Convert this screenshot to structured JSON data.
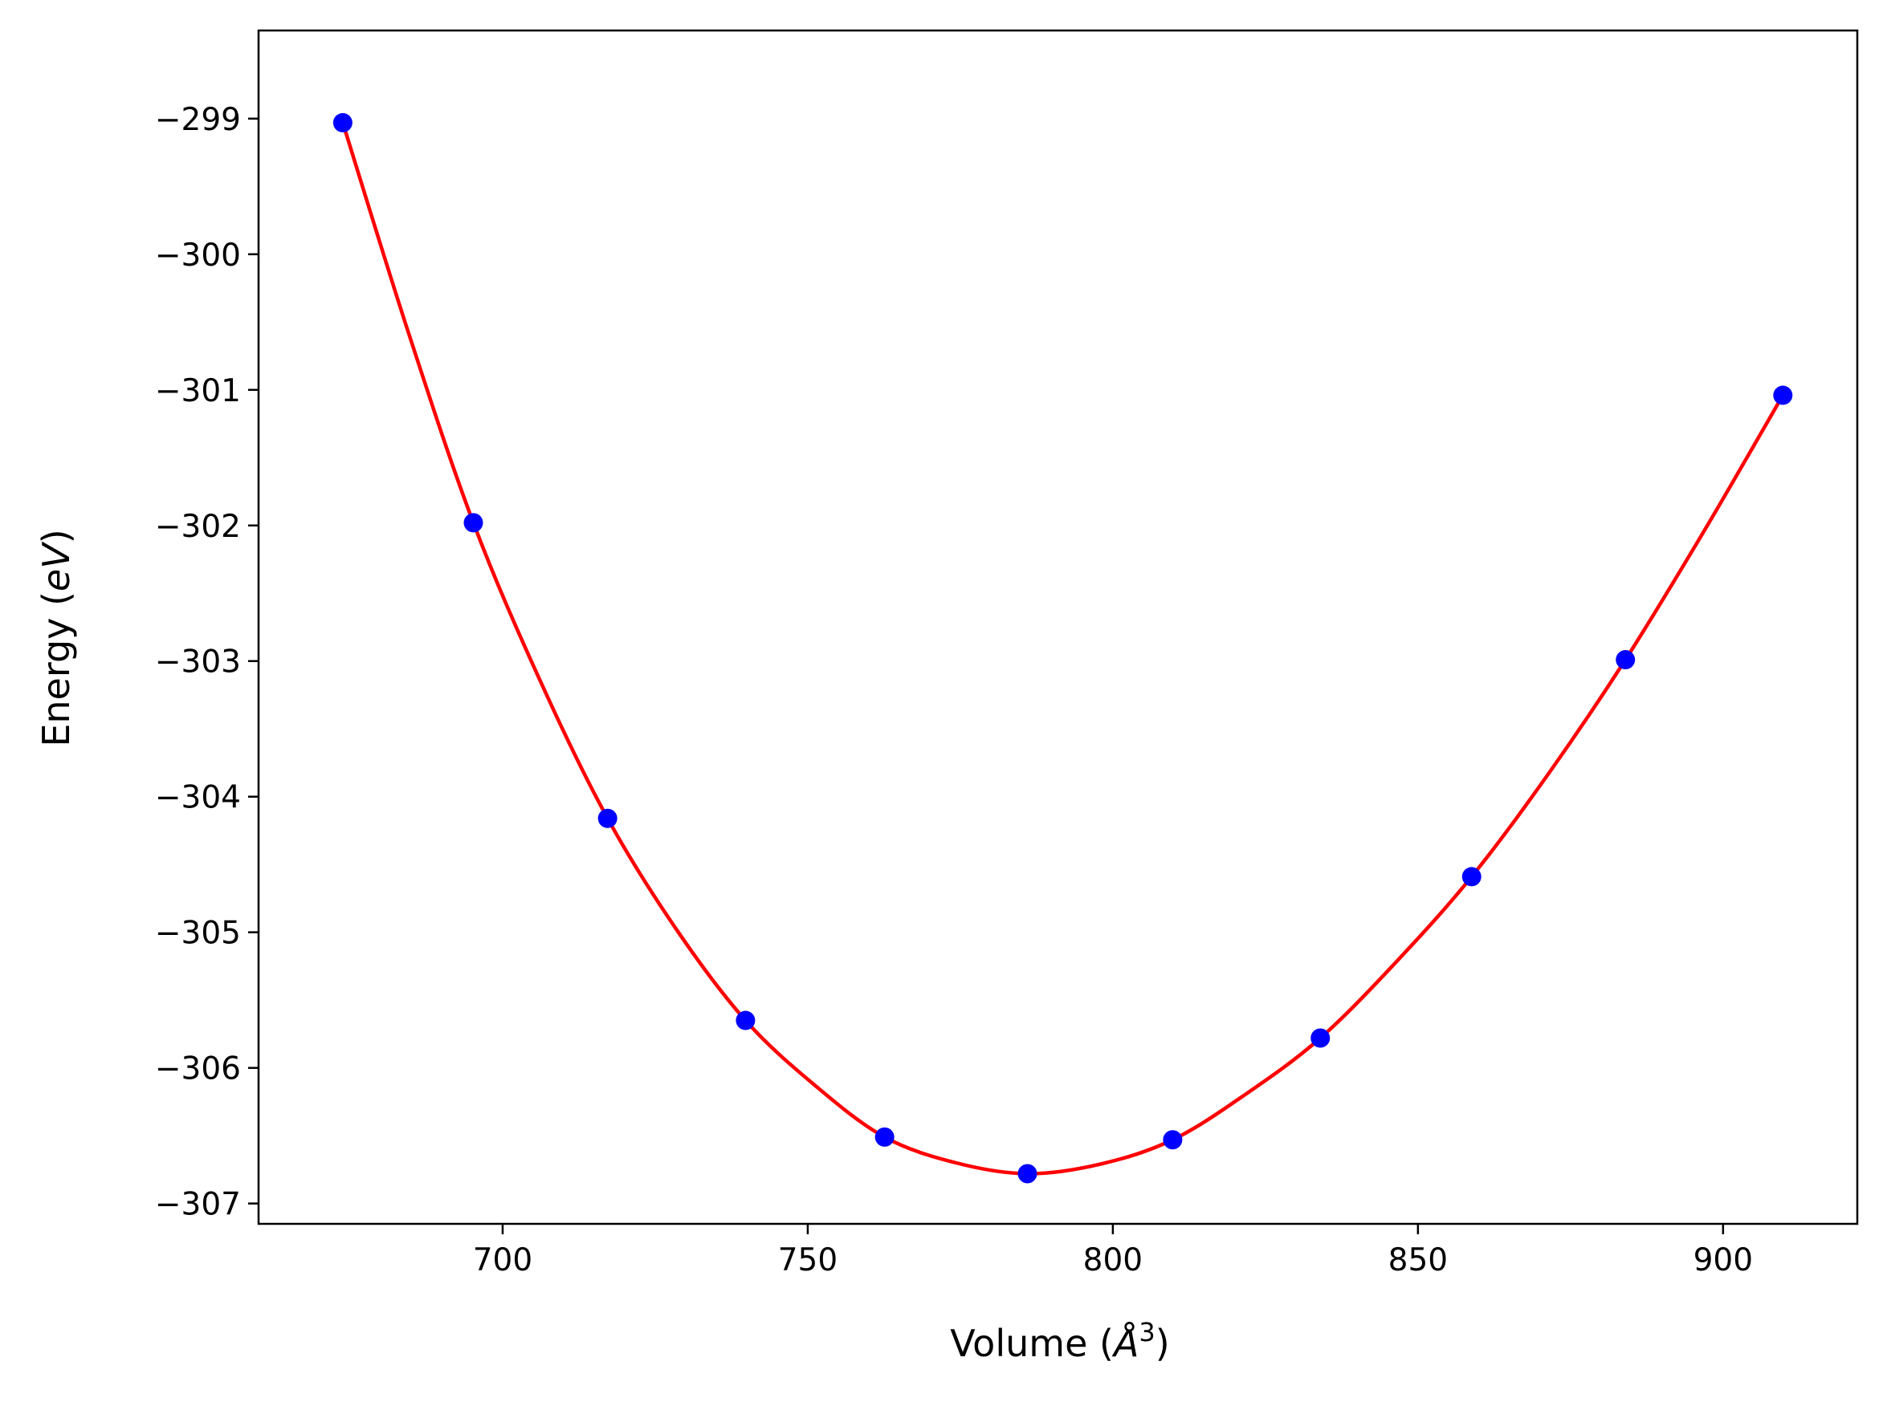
{
  "chart_data": {
    "type": "line",
    "title": "",
    "xlabel": {
      "prefix": "Volume (",
      "symbol": "Å",
      "sup": "3",
      "suffix": ")"
    },
    "ylabel": {
      "prefix": "Energy (",
      "symbol": "eV",
      "suffix": ")"
    },
    "xlim": [
      660,
      922
    ],
    "ylim": [
      -307.15,
      -298.35
    ],
    "xticks": [
      700,
      750,
      800,
      850,
      900
    ],
    "xtick_labels": [
      "700",
      "750",
      "800",
      "850",
      "900"
    ],
    "yticks": [
      -299,
      -300,
      -301,
      -302,
      -303,
      -304,
      -305,
      -306,
      -307
    ],
    "ytick_labels": [
      "−299",
      "−300",
      "−301",
      "−302",
      "−303",
      "−304",
      "−305",
      "−306",
      "−307"
    ],
    "grid": false,
    "legend": "none",
    "series": [
      {
        "type": "scatter",
        "color": "#0000ff",
        "x": [
          673.8,
          695.2,
          717.2,
          739.8,
          762.6,
          786.0,
          809.8,
          834.0,
          858.8,
          884.0,
          909.8
        ],
        "y": [
          -299.03,
          -301.98,
          -304.16,
          -305.65,
          -306.51,
          -306.78,
          -306.53,
          -305.78,
          -304.59,
          -302.99,
          -301.04
        ]
      },
      {
        "type": "line",
        "color": "#ff0000",
        "x": [
          673.8,
          684.5,
          695.2,
          706.2,
          717.2,
          728.5,
          739.8,
          751.2,
          762.6,
          774.3,
          786.0,
          797.9,
          809.8,
          821.9,
          834.0,
          846.4,
          858.8,
          871.4,
          884.0,
          896.9,
          909.8
        ],
        "y": [
          -299.03,
          -300.57,
          -301.98,
          -303.15,
          -304.16,
          -304.98,
          -305.65,
          -306.13,
          -306.51,
          -306.7,
          -306.78,
          -306.71,
          -306.53,
          -306.19,
          -305.78,
          -305.22,
          -304.59,
          -303.83,
          -302.99,
          -302.04,
          -301.04
        ]
      }
    ]
  }
}
